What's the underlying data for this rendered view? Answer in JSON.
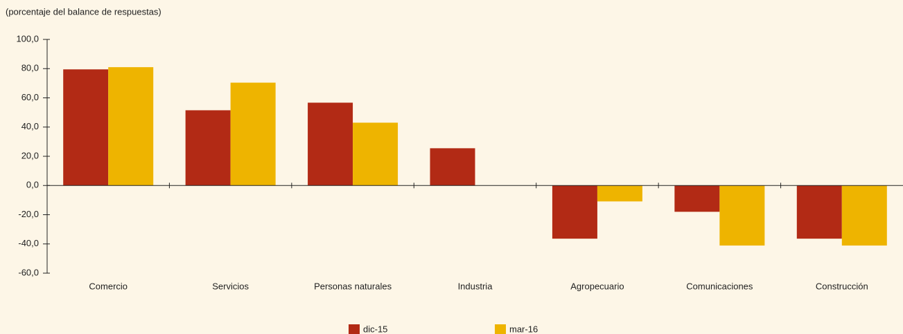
{
  "chart_data": {
    "type": "bar",
    "y_label": "(porcentaje del balance de respuestas)",
    "categories": [
      "Comercio",
      "Servicios",
      "Personas naturales",
      "Industria",
      "Agropecuario",
      "Comunicaciones",
      "Construcción"
    ],
    "series": [
      {
        "name": "dic-15",
        "color": "#b22a15",
        "values": [
          79.5,
          51.5,
          56.7,
          25.5,
          -36.4,
          -18.0,
          -36.4
        ]
      },
      {
        "name": "mar-16",
        "color": "#eeb400",
        "values": [
          81.0,
          70.4,
          43.0,
          0,
          -10.9,
          -41.1,
          -41.1
        ]
      }
    ],
    "ylim": [
      -60,
      100
    ],
    "yticks": [
      {
        "value": -60,
        "label": "-60,0"
      },
      {
        "value": -40,
        "label": "-40,0"
      },
      {
        "value": -20,
        "label": "-20,0"
      },
      {
        "value": 0,
        "label": "0,0"
      },
      {
        "value": 20,
        "label": "20,0"
      },
      {
        "value": 40,
        "label": "40,0"
      },
      {
        "value": 60,
        "label": "60,0"
      },
      {
        "value": 80,
        "label": "80,0"
      },
      {
        "value": 100,
        "label": "100,0"
      }
    ],
    "legend": "bottom"
  }
}
